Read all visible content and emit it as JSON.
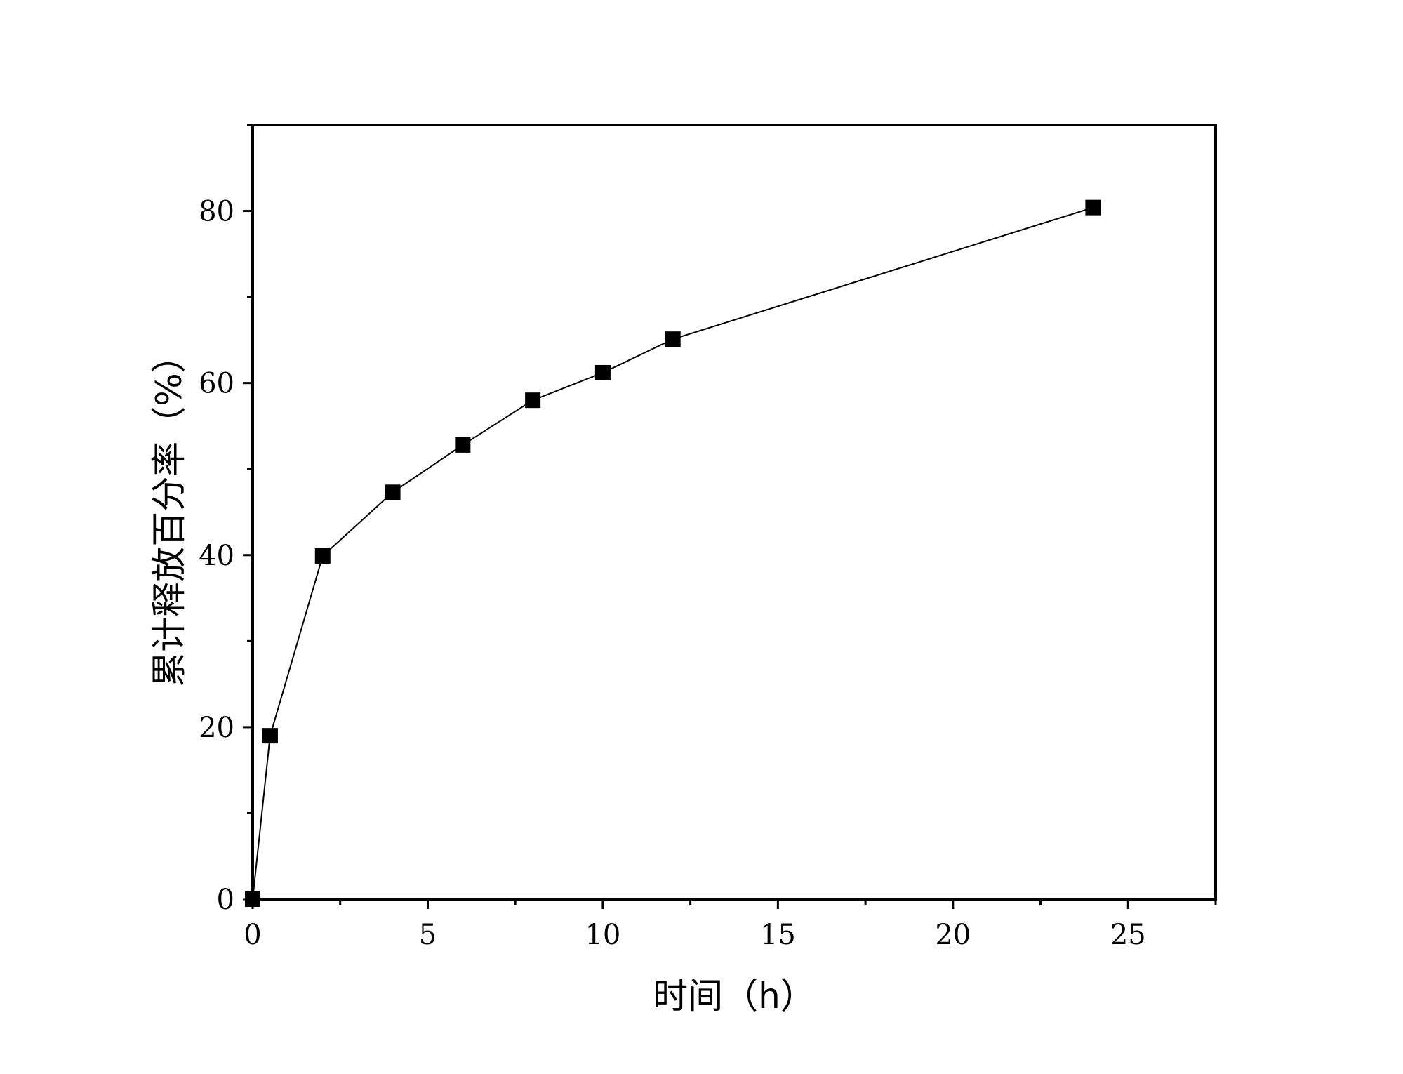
{
  "chart_data": {
    "type": "line",
    "xlabel": "时间（h）",
    "ylabel": "累计释放百分率（%）",
    "xlim": [
      0,
      27.5
    ],
    "ylim": [
      0,
      90
    ],
    "x_ticks": [
      0,
      5,
      10,
      15,
      20,
      25
    ],
    "y_ticks": [
      0,
      20,
      40,
      60,
      80
    ],
    "x_minor_step": 2.5,
    "y_minor_step": 10,
    "grid": false,
    "marker": "square",
    "colors": {
      "line": "#000000",
      "marker": "#000000"
    },
    "series": [
      {
        "x": [
          0,
          0.5,
          2,
          4,
          6,
          8,
          10,
          12,
          24
        ],
        "y": [
          0,
          19.0,
          39.9,
          47.3,
          52.8,
          58.0,
          61.2,
          65.1,
          80.4
        ]
      }
    ]
  }
}
